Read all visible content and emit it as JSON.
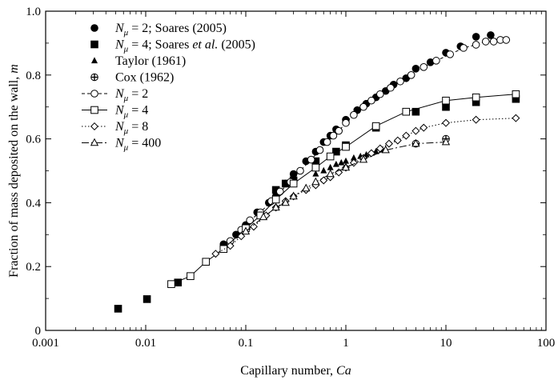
{
  "chart_data": {
    "type": "scatter",
    "xscale": "log",
    "xlim": [
      0.001,
      100
    ],
    "ylim": [
      0,
      1.0
    ],
    "xlabel": "Capillary number, Ca",
    "ylabel": "Fraction of mass deposited on the wall, m",
    "x_ticks": [
      0.001,
      0.01,
      0.1,
      1,
      10,
      100
    ],
    "x_tick_labels": [
      "0.001",
      "0.01",
      "0.1",
      "1",
      "10",
      "100"
    ],
    "y_ticks": [
      0,
      0.2,
      0.4,
      0.6,
      0.8,
      1.0
    ],
    "y_tick_labels": [
      "0",
      "0.2",
      "0.4",
      "0.6",
      "0.8",
      "1.0"
    ],
    "legend_position": "top-left",
    "series": [
      {
        "name": "N_μ = 2; Soares (2005)",
        "legend": {
          "pre": "N",
          "sub": "μ",
          "post": " = 2; Soares (2005)"
        },
        "marker": "filled-circle",
        "line": "none",
        "points": [
          [
            0.06,
            0.27
          ],
          [
            0.08,
            0.3
          ],
          [
            0.1,
            0.33
          ],
          [
            0.13,
            0.37
          ],
          [
            0.17,
            0.4
          ],
          [
            0.2,
            0.42
          ],
          [
            0.25,
            0.46
          ],
          [
            0.3,
            0.49
          ],
          [
            0.4,
            0.53
          ],
          [
            0.5,
            0.56
          ],
          [
            0.6,
            0.59
          ],
          [
            0.7,
            0.61
          ],
          [
            0.8,
            0.63
          ],
          [
            1.0,
            0.66
          ],
          [
            1.3,
            0.69
          ],
          [
            1.6,
            0.71
          ],
          [
            2,
            0.73
          ],
          [
            2.5,
            0.75
          ],
          [
            3,
            0.77
          ],
          [
            4,
            0.79
          ],
          [
            5,
            0.82
          ],
          [
            7,
            0.84
          ],
          [
            10,
            0.87
          ],
          [
            14,
            0.89
          ],
          [
            20,
            0.92
          ],
          [
            28,
            0.925
          ]
        ]
      },
      {
        "name": "N_μ = 4; Soares et al. (2005)",
        "legend": {
          "pre": "N",
          "sub": "μ",
          "post": " = 4; Soares ",
          "italic": "et al.",
          "post2": " (2005)"
        },
        "marker": "filled-square",
        "line": "none",
        "points": [
          [
            0.0053,
            0.068
          ],
          [
            0.0103,
            0.098
          ],
          [
            0.021,
            0.15
          ],
          [
            0.2,
            0.44
          ],
          [
            0.25,
            0.46
          ],
          [
            0.3,
            0.47
          ],
          [
            0.5,
            0.53
          ],
          [
            0.8,
            0.56
          ],
          [
            1.0,
            0.58
          ],
          [
            2.0,
            0.635
          ],
          [
            5.0,
            0.685
          ],
          [
            10,
            0.7
          ],
          [
            20,
            0.715
          ],
          [
            50,
            0.725
          ]
        ]
      },
      {
        "name": "Taylor (1961)",
        "legend": {
          "pre": "Taylor (1961)"
        },
        "marker": "filled-triangle",
        "line": "none",
        "points": [
          [
            0.5,
            0.49
          ],
          [
            0.6,
            0.5
          ],
          [
            0.7,
            0.51
          ],
          [
            0.8,
            0.52
          ],
          [
            0.9,
            0.525
          ],
          [
            1.0,
            0.53
          ],
          [
            1.2,
            0.54
          ],
          [
            1.4,
            0.545
          ],
          [
            1.6,
            0.55
          ],
          [
            1.8,
            0.555
          ],
          [
            2.0,
            0.56
          ],
          [
            2.3,
            0.565
          ]
        ]
      },
      {
        "name": "Cox (1962)",
        "legend": {
          "pre": "Cox (1962)"
        },
        "marker": "cross-circle",
        "line": "none",
        "points": [
          [
            5,
            0.585
          ],
          [
            10,
            0.6
          ]
        ]
      },
      {
        "name": "N_μ = 2",
        "legend": {
          "pre": "N",
          "sub": "μ",
          "post": " = 2"
        },
        "marker": "open-circle",
        "line": "dashed",
        "points": [
          [
            0.07,
            0.28
          ],
          [
            0.09,
            0.315
          ],
          [
            0.11,
            0.345
          ],
          [
            0.14,
            0.37
          ],
          [
            0.18,
            0.405
          ],
          [
            0.22,
            0.435
          ],
          [
            0.28,
            0.465
          ],
          [
            0.35,
            0.5
          ],
          [
            0.45,
            0.535
          ],
          [
            0.55,
            0.565
          ],
          [
            0.65,
            0.59
          ],
          [
            0.75,
            0.61
          ],
          [
            0.85,
            0.625
          ],
          [
            1.0,
            0.65
          ],
          [
            1.2,
            0.675
          ],
          [
            1.5,
            0.7
          ],
          [
            1.8,
            0.72
          ],
          [
            2.2,
            0.74
          ],
          [
            2.8,
            0.76
          ],
          [
            3.5,
            0.78
          ],
          [
            4.5,
            0.8
          ],
          [
            6,
            0.825
          ],
          [
            8,
            0.845
          ],
          [
            11,
            0.865
          ],
          [
            15,
            0.885
          ],
          [
            20,
            0.895
          ],
          [
            25,
            0.905
          ],
          [
            30,
            0.905
          ],
          [
            35,
            0.91
          ],
          [
            40,
            0.91
          ]
        ]
      },
      {
        "name": "N_μ = 4",
        "legend": {
          "pre": "N",
          "sub": "μ",
          "post": " = 4"
        },
        "marker": "open-square",
        "line": "solid",
        "points": [
          [
            0.018,
            0.145
          ],
          [
            0.028,
            0.17
          ],
          [
            0.04,
            0.215
          ],
          [
            0.06,
            0.255
          ],
          [
            0.1,
            0.32
          ],
          [
            0.14,
            0.36
          ],
          [
            0.2,
            0.41
          ],
          [
            0.3,
            0.46
          ],
          [
            0.5,
            0.51
          ],
          [
            0.7,
            0.545
          ],
          [
            1.0,
            0.575
          ],
          [
            2,
            0.64
          ],
          [
            4,
            0.685
          ],
          [
            10,
            0.72
          ],
          [
            20,
            0.73
          ],
          [
            50,
            0.74
          ]
        ]
      },
      {
        "name": "N_μ = 8",
        "legend": {
          "pre": "N",
          "sub": "μ",
          "post": " = 8"
        },
        "marker": "open-diamond",
        "line": "dotted",
        "points": [
          [
            0.05,
            0.24
          ],
          [
            0.07,
            0.265
          ],
          [
            0.09,
            0.295
          ],
          [
            0.12,
            0.325
          ],
          [
            0.16,
            0.36
          ],
          [
            0.2,
            0.385
          ],
          [
            0.25,
            0.405
          ],
          [
            0.3,
            0.42
          ],
          [
            0.4,
            0.44
          ],
          [
            0.5,
            0.455
          ],
          [
            0.6,
            0.47
          ],
          [
            0.7,
            0.48
          ],
          [
            0.85,
            0.495
          ],
          [
            1.0,
            0.51
          ],
          [
            1.2,
            0.525
          ],
          [
            1.5,
            0.54
          ],
          [
            1.8,
            0.555
          ],
          [
            2.2,
            0.57
          ],
          [
            2.7,
            0.585
          ],
          [
            3.3,
            0.595
          ],
          [
            4,
            0.61
          ],
          [
            5,
            0.625
          ],
          [
            6,
            0.635
          ],
          [
            10,
            0.65
          ],
          [
            20,
            0.66
          ],
          [
            50,
            0.665
          ]
        ]
      },
      {
        "name": "N_μ = 400",
        "legend": {
          "pre": "N",
          "sub": "μ",
          "post": " = 400"
        },
        "marker": "open-triangle",
        "line": "dash-dot",
        "points": [
          [
            0.1,
            0.31
          ],
          [
            0.15,
            0.355
          ],
          [
            0.2,
            0.385
          ],
          [
            0.25,
            0.4
          ],
          [
            0.3,
            0.42
          ],
          [
            0.4,
            0.445
          ],
          [
            0.5,
            0.465
          ],
          [
            0.7,
            0.49
          ],
          [
            1.0,
            0.51
          ],
          [
            1.5,
            0.535
          ],
          [
            2.5,
            0.565
          ],
          [
            5,
            0.585
          ],
          [
            10,
            0.59
          ]
        ]
      }
    ]
  }
}
